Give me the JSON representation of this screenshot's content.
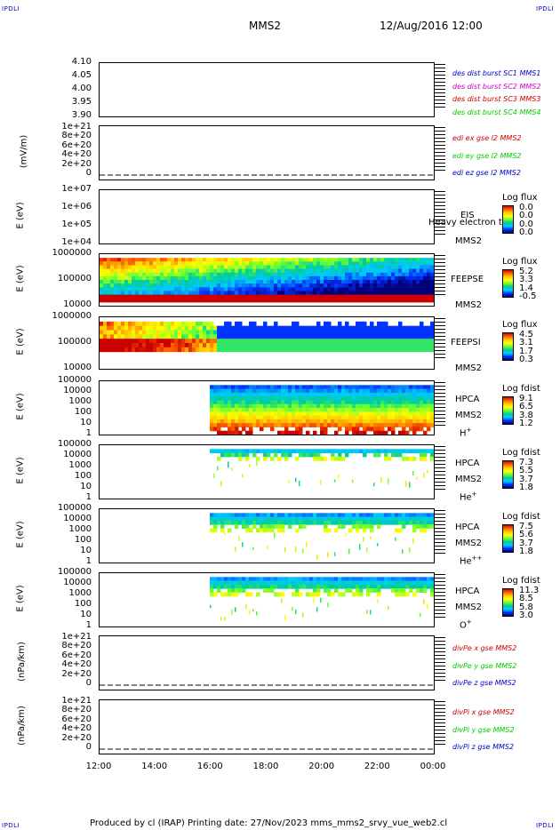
{
  "corner_label": "IPDLI",
  "header": {
    "spacecraft": "MMS2",
    "datetime": "12/Aug/2016 12:00"
  },
  "footer": {
    "text": "Produced by cl (IRAP)   Printing date: 27/Nov/2023   mms_mms2_srvy_vue_web2.cl"
  },
  "colors": {
    "red": "#cc0000",
    "magenta": "#cc00cc",
    "green": "#00cc00",
    "blue": "#0000cc"
  },
  "chart_data": {
    "type": "heatmap",
    "x_ticks": [
      "12:00",
      "14:00",
      "16:00",
      "18:00",
      "20:00",
      "22:00",
      "00:00"
    ],
    "panels": [
      {
        "id": "dist",
        "ylabel": "",
        "y_ticks": [
          "4.10",
          "4.05",
          "4.00",
          "3.95",
          "3.90"
        ],
        "legend": [
          {
            "text": "des dist burst SC1 MMS1",
            "color": "#0000cc"
          },
          {
            "text": "des dist burst SC2 MMS2",
            "color": "#cc00cc"
          },
          {
            "text": "des dist burst SC3 MMS3",
            "color": "#cc0000"
          },
          {
            "text": "des dist burst SC4 MMS4",
            "color": "#00cc00"
          }
        ]
      },
      {
        "id": "edi",
        "ylabel": "(mV/m)",
        "y_ticks": [
          "1e+21",
          "8e+20",
          "6e+20",
          "4e+20",
          "2e+20",
          "0"
        ],
        "legend": [
          {
            "text": "edi ex gse l2 MMS2",
            "color": "#cc0000"
          },
          {
            "text": "edi ey gse l2 MMS2",
            "color": "#00cc00"
          },
          {
            "text": "edi ez gse l2 MMS2",
            "color": "#0000cc"
          }
        ]
      },
      {
        "id": "eis",
        "ylabel": "E (eV)",
        "y_ticks": [
          "1e+07",
          "1e+06",
          "1e+05",
          "1e+04"
        ],
        "instrument": [
          "EIS",
          "MMS2"
        ],
        "overlay": "Heavy electron to",
        "colorbar": {
          "title": "Log flux",
          "values": [
            "0.0",
            "0.0",
            "0.0",
            "0.0"
          ]
        }
      },
      {
        "id": "feepse",
        "ylabel": "E (eV)",
        "y_ticks": [
          "1000000",
          "100000",
          "10000"
        ],
        "instrument": [
          "FEEPSE",
          "MMS2"
        ],
        "colorbar": {
          "title": "Log flux",
          "values": [
            "5.2",
            "3.3",
            "1.4",
            "-0.5"
          ]
        }
      },
      {
        "id": "feepsi",
        "ylabel": "E (eV)",
        "y_ticks": [
          "1000000",
          "100000",
          "10000"
        ],
        "instrument": [
          "FEEPSI",
          "MMS2"
        ],
        "colorbar": {
          "title": "Log flux",
          "values": [
            "4.5",
            "3.1",
            "1.7",
            "0.3"
          ]
        }
      },
      {
        "id": "hpca_h",
        "ylabel": "E (eV)",
        "y_ticks": [
          "100000",
          "10000",
          "1000",
          "100",
          "10",
          "1"
        ],
        "instrument": [
          "HPCA",
          "MMS2"
        ],
        "species": "H",
        "charge": "+",
        "colorbar": {
          "title": "Log fdist",
          "values": [
            "9.1",
            "6.5",
            "3.8",
            "1.2"
          ]
        }
      },
      {
        "id": "hpca_he",
        "ylabel": "E (eV)",
        "y_ticks": [
          "100000",
          "10000",
          "1000",
          "100",
          "10",
          "1"
        ],
        "instrument": [
          "HPCA",
          "MMS2"
        ],
        "species": "He",
        "charge": "+",
        "colorbar": {
          "title": "Log fdist",
          "values": [
            "7.3",
            "5.5",
            "3.7",
            "1.8"
          ]
        }
      },
      {
        "id": "hpca_hepp",
        "ylabel": "E (eV)",
        "y_ticks": [
          "100000",
          "10000",
          "1000",
          "100",
          "10",
          "1"
        ],
        "instrument": [
          "HPCA",
          "MMS2"
        ],
        "species": "He",
        "charge": "++",
        "colorbar": {
          "title": "Log fdist",
          "values": [
            "7.5",
            "5.6",
            "3.7",
            "1.8"
          ]
        }
      },
      {
        "id": "hpca_o",
        "ylabel": "E (eV)",
        "y_ticks": [
          "100000",
          "10000",
          "1000",
          "100",
          "10",
          "1"
        ],
        "instrument": [
          "HPCA",
          "MMS2"
        ],
        "species": "O",
        "charge": "+",
        "colorbar": {
          "title": "Log fdist",
          "values": [
            "11.3",
            "8.5",
            "5.8",
            "3.0"
          ]
        }
      },
      {
        "id": "divpe",
        "ylabel": "(nPa/km)",
        "y_ticks": [
          "1e+21",
          "8e+20",
          "6e+20",
          "4e+20",
          "2e+20",
          "0"
        ],
        "legend": [
          {
            "text": "divPe x gse MMS2",
            "color": "#cc0000"
          },
          {
            "text": "divPe y gse MMS2",
            "color": "#00cc00"
          },
          {
            "text": "divPe z gse MMS2",
            "color": "#0000cc"
          }
        ]
      },
      {
        "id": "divpi",
        "ylabel": "(nPa/km)",
        "y_ticks": [
          "1e+21",
          "8e+20",
          "6e+20",
          "4e+20",
          "2e+20",
          "0"
        ],
        "legend": [
          {
            "text": "divPi x gse MMS2",
            "color": "#cc0000"
          },
          {
            "text": "divPi y gse MMS2",
            "color": "#00cc00"
          },
          {
            "text": "divPi z gse MMS2",
            "color": "#0000cc"
          }
        ]
      }
    ]
  }
}
